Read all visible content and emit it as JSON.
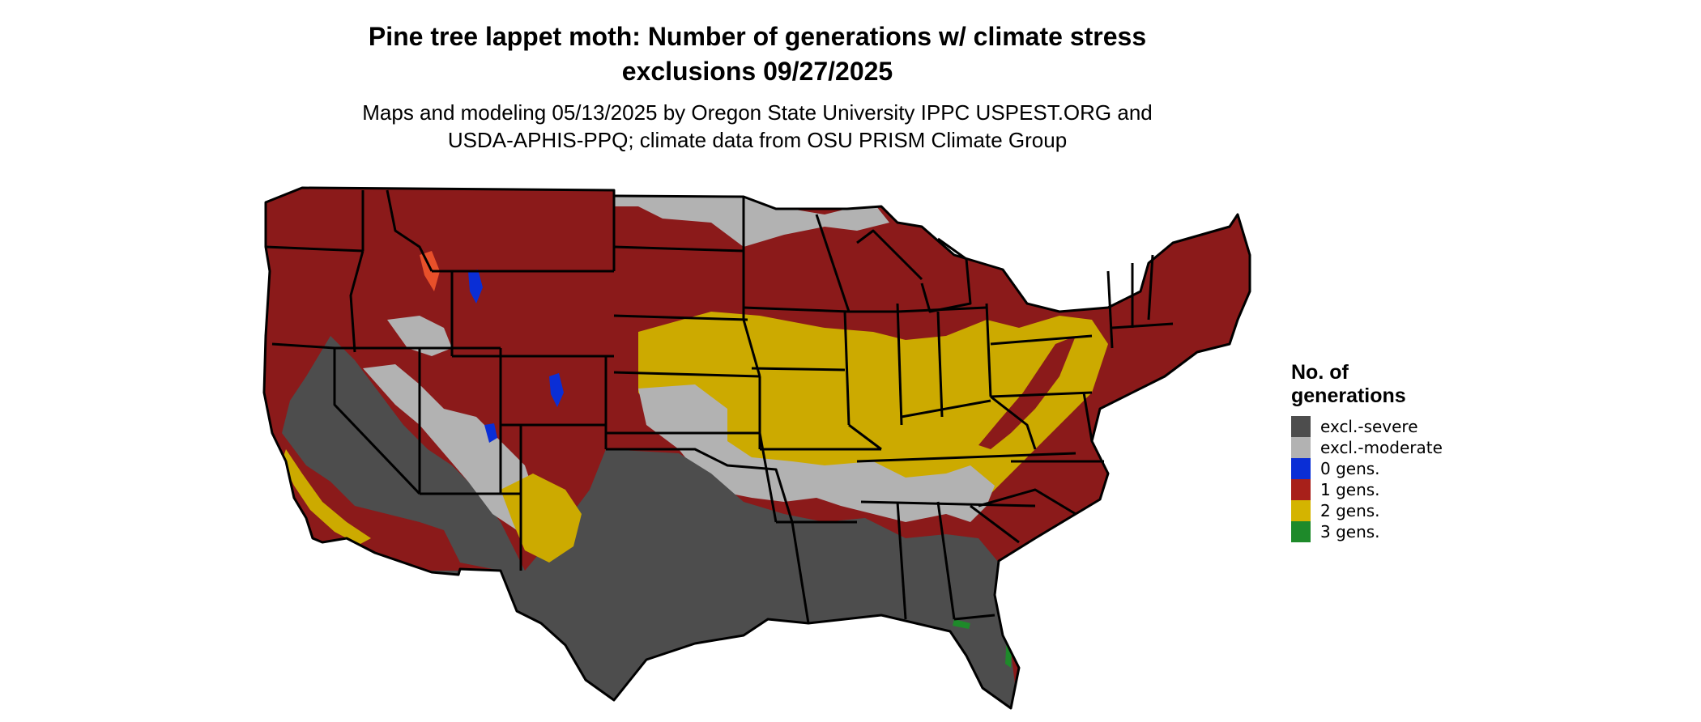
{
  "title_line1": "Pine tree lappet moth: Number of generations w/ climate stress",
  "title_line2": "exclusions 09/27/2025",
  "subtitle_line1": "Maps and modeling 05/13/2025 by Oregon State University IPPC USPEST.ORG and",
  "subtitle_line2": "USDA-APHIS-PPQ; climate data from OSU PRISM Climate Group",
  "legend": {
    "title_line1": "No. of",
    "title_line2": "generations",
    "items": [
      {
        "label": "excl.-severe",
        "color": "#4d4d4d"
      },
      {
        "label": "excl.-moderate",
        "color": "#b2b2b2"
      },
      {
        "label": "0 gens.",
        "color": "#0a2ed6"
      },
      {
        "label": "1 gens.",
        "color": "#a8201a"
      },
      {
        "label": "2 gens.",
        "color": "#d4b400"
      },
      {
        "label": "3 gens.",
        "color": "#1e8a2a"
      }
    ]
  },
  "map_colors": {
    "severe": "#4d4d4d",
    "moderate": "#b2b2b2",
    "zero": "#0a2ed6",
    "one": "#8b1a1a",
    "two": "#ccaa00",
    "three": "#1e8a2a",
    "border": "#000000",
    "orange_patch": "#e8502a"
  }
}
